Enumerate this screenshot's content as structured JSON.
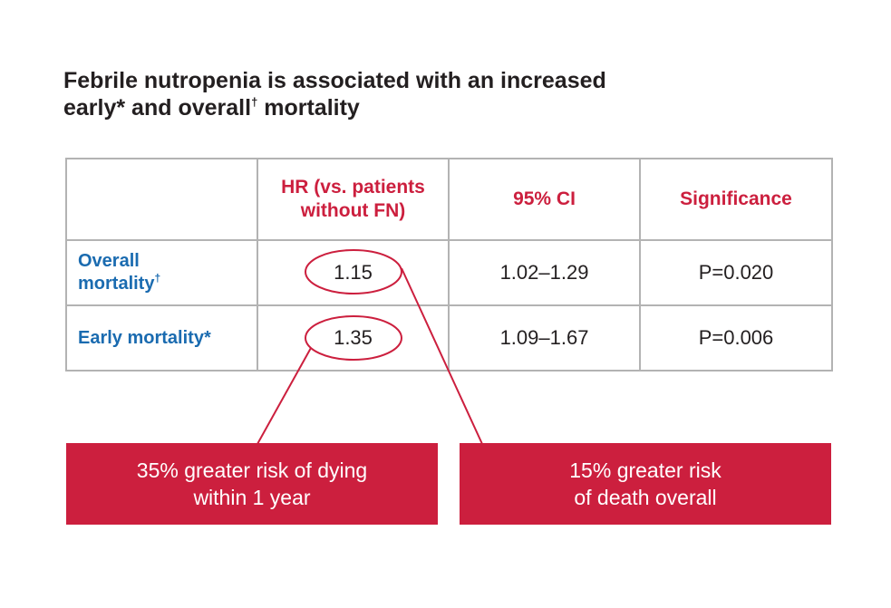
{
  "title": {
    "line1": "Febrile nutropenia is associated with an increased",
    "line2_part1": "early* and overall",
    "line2_dagger": "†",
    "line2_part2": " mortality"
  },
  "table": {
    "headers": {
      "row_label": "",
      "hr_line1": "HR (vs. patients",
      "hr_line2": "without FN)",
      "ci": "95% CI",
      "significance": "Significance"
    },
    "rows": [
      {
        "label_line1": "Overall",
        "label_line2": "mortality",
        "label_mark": "†",
        "hr": "1.15",
        "ci": "1.02–1.29",
        "significance": "P=0.020"
      },
      {
        "label_line1": "Early mortality*",
        "label_line2": "",
        "label_mark": "",
        "hr": "1.35",
        "ci": "1.09–1.67",
        "significance": "P=0.006"
      }
    ]
  },
  "callouts": {
    "left_line1": "35% greater risk of dying",
    "left_line2": "within 1 year",
    "right_line1": "15% greater risk",
    "right_line2": "of death overall"
  },
  "colors": {
    "accent_red": "#cc1f3e",
    "label_blue": "#1a6bb0",
    "text_dark": "#231f20",
    "grid_gray": "#b3b3b3"
  }
}
